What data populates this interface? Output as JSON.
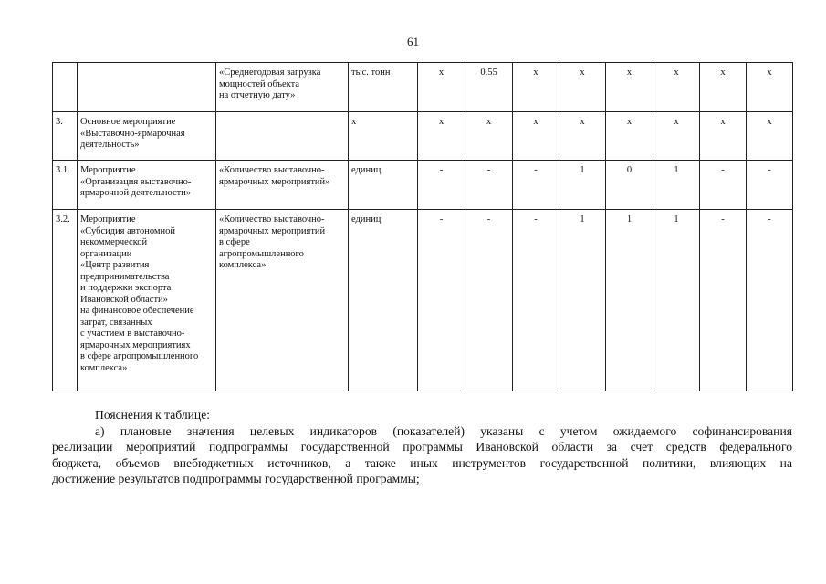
{
  "page_number": "61",
  "table": {
    "rows": [
      {
        "num": "",
        "name": "",
        "indicator": "«Среднегодовая загрузка\nмощностей объекта\nна отчетную дату»",
        "unit": "тыс. тонн",
        "values": [
          "х",
          "0.55",
          "х",
          "х",
          "х",
          "х",
          "х",
          "х"
        ]
      },
      {
        "num": "3.",
        "name": "Основное мероприятие\n«Выставочно-ярмарочная\nдеятельность»",
        "indicator": "",
        "unit": "х",
        "values": [
          "х",
          "х",
          "х",
          "х",
          "х",
          "х",
          "х",
          "х"
        ]
      },
      {
        "num": "3.1.",
        "name": "Мероприятие\n«Организация выставочно-\nярмарочной деятельности»",
        "indicator": "«Количество выставочно-\nярмарочных мероприятий»",
        "unit": "единиц",
        "values": [
          "-",
          "-",
          "-",
          "1",
          "0",
          "1",
          "-",
          "-"
        ]
      },
      {
        "num": "3.2.",
        "name": "Мероприятие\n«Субсидия автономной\nнекоммерческой\nорганизации\n«Центр развития\nпредпринимательства\nи поддержки экспорта\nИвановской области»\nна финансовое обеспечение\nзатрат, связанных\nс участием в выставочно-\nярмарочных мероприятиях\nв сфере агропромышленного\nкомплекса»",
        "indicator": "«Количество выставочно-\nярмарочных мероприятий\nв сфере\nагропромышленного\nкомплекса»",
        "unit": "единиц",
        "values": [
          "-",
          "-",
          "-",
          "1",
          "1",
          "1",
          "-",
          "-"
        ]
      }
    ]
  },
  "notes": {
    "heading": "Пояснения к таблице:",
    "lines": [
      "а) плановые значения целевых индикаторов (показателей) указаны с учетом ожидаемого софинансирования",
      "реализации мероприятий подпрограммы государственной программы Ивановской области за счет средств федерального",
      "бюджета, объемов внебюджетных источников, а также иных инструментов государственной политики, влияющих на",
      "достижение результатов подпрограммы государственной программы;"
    ]
  }
}
